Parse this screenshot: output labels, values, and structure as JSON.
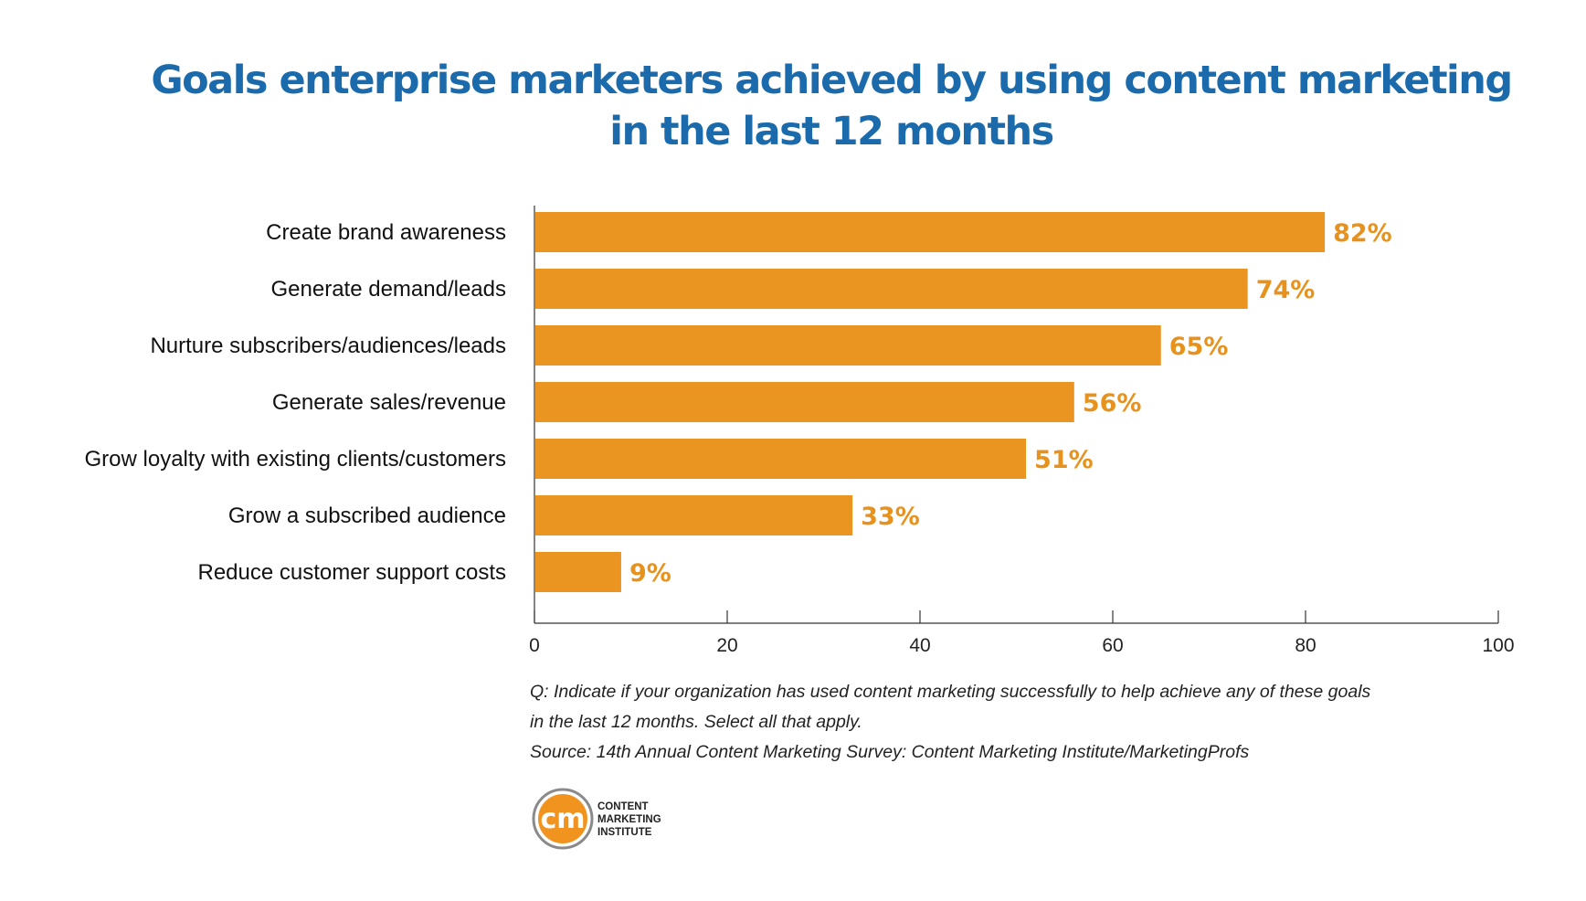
{
  "title_line1": "Goals enterprise marketers achieved by using content marketing",
  "title_line2": "in the last 12 months",
  "chart_data": {
    "type": "bar",
    "orientation": "horizontal",
    "title": "Goals enterprise marketers achieved by using content marketing in the last 12 months",
    "categories": [
      "Create brand awareness",
      "Generate demand/leads",
      "Nurture subscribers/audiences/leads",
      "Generate sales/revenue",
      "Grow loyalty with existing clients/customers",
      "Grow a subscribed audience",
      "Reduce customer support costs"
    ],
    "values": [
      82,
      74,
      65,
      56,
      51,
      33,
      9
    ],
    "data_labels": [
      "82%",
      "74%",
      "65%",
      "56%",
      "51%",
      "33%",
      "9%"
    ],
    "xlim": [
      0,
      100
    ],
    "xticks": [
      0,
      20,
      40,
      60,
      80,
      100
    ],
    "xtick_labels": [
      "0",
      "20",
      "40",
      "60",
      "80",
      "100"
    ],
    "grid": false,
    "bar_color": "#ea9521",
    "label_color": "#e8921e"
  },
  "footnote_q1": "Q: Indicate if your organization has used content marketing successfully to help achieve any of these goals",
  "footnote_q2": "in the last 12 months. Select all that apply.",
  "source": "Source: 14th Annual Content Marketing Survey: Content Marketing Institute/MarketingProfs",
  "logo": {
    "mark": "cm",
    "line1": "CONTENT",
    "line2": "MARKETING",
    "line3": "INSTITUTE"
  }
}
